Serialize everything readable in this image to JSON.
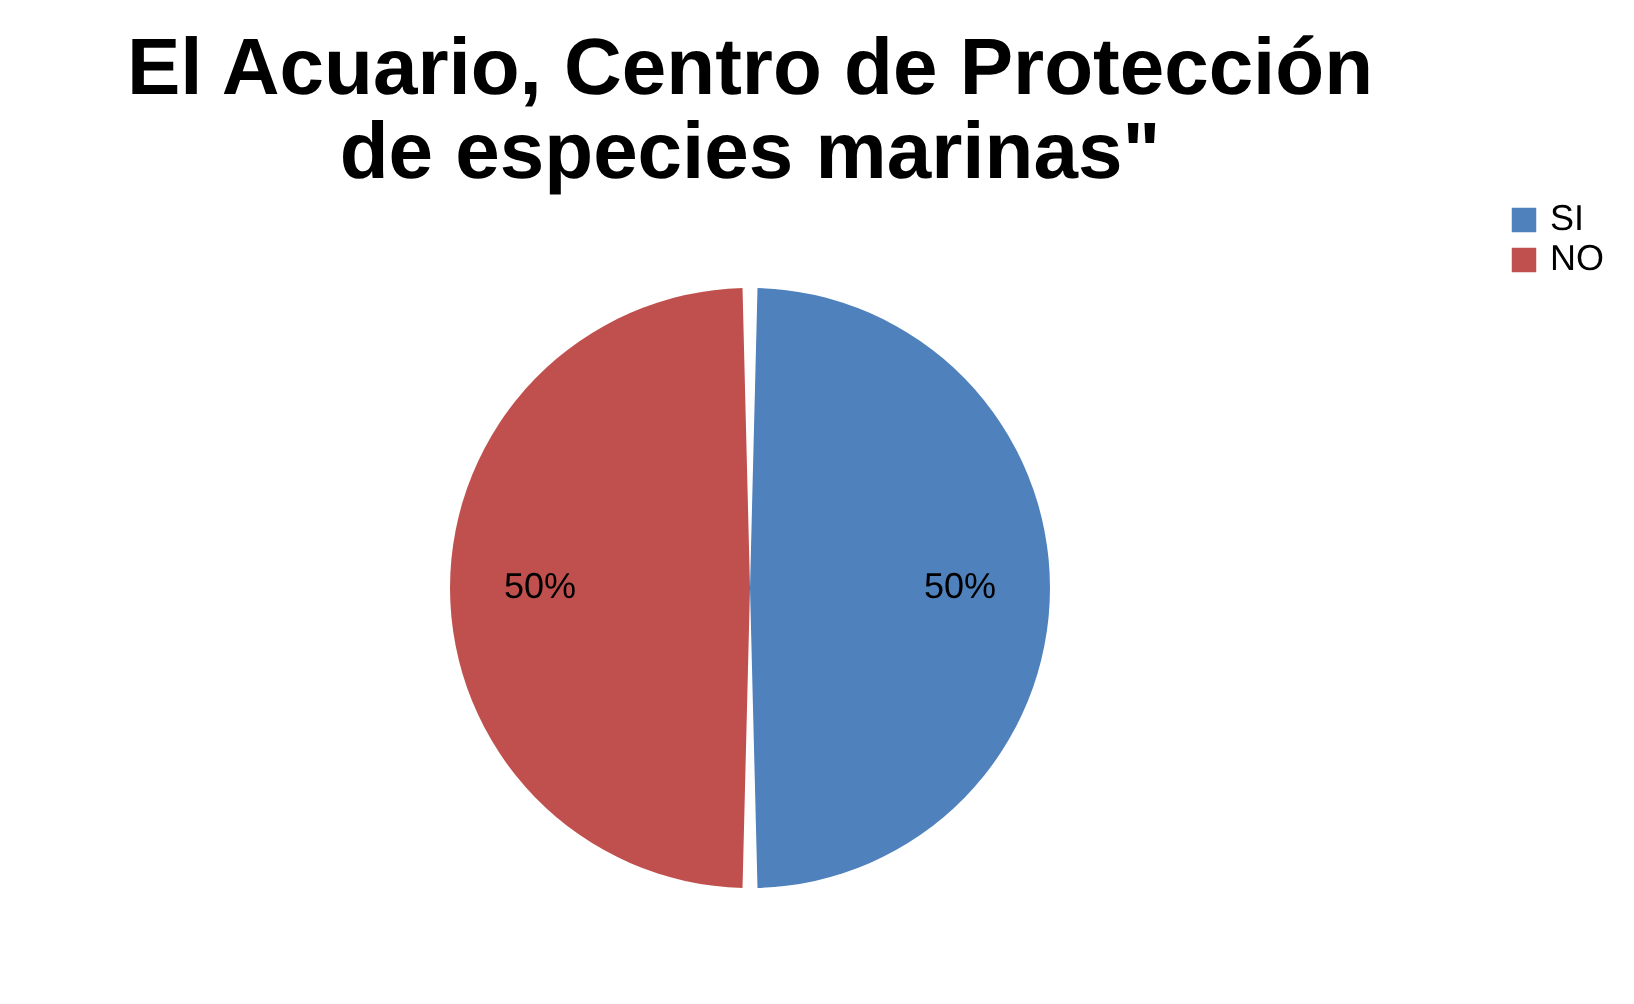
{
  "chart_data": {
    "type": "pie",
    "title": "El Acuario, Centro de Protección de especies marinas\"",
    "categories": [
      "SI",
      "NO"
    ],
    "values": [
      50,
      50
    ],
    "colors": [
      "#4f81bd",
      "#c0504d"
    ],
    "value_labels": [
      "50%",
      "50%"
    ],
    "legend": "right"
  }
}
